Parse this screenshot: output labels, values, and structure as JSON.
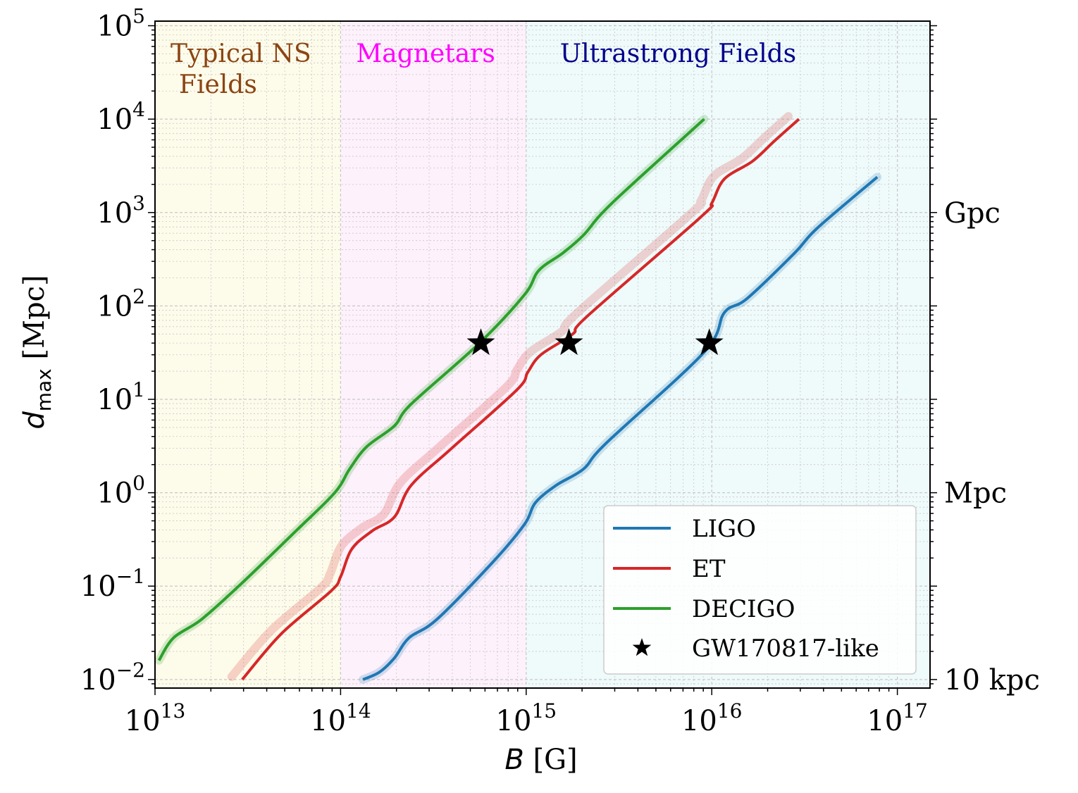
{
  "chart_data": {
    "type": "line",
    "xlabel": "B [G]",
    "ylabel": "d_max [Mpc]",
    "xscale": "log",
    "yscale": "log",
    "xlim": [
      10000000000000.0,
      1.5e+17
    ],
    "ylim": [
      0.0081,
      112000
    ],
    "grid": true,
    "x_ticks": [
      {
        "base": "10",
        "exp": "13",
        "value": 10000000000000.0
      },
      {
        "base": "10",
        "exp": "14",
        "value": 100000000000000.0
      },
      {
        "base": "10",
        "exp": "15",
        "value": 1000000000000000.0
      },
      {
        "base": "10",
        "exp": "16",
        "value": 1e+16
      },
      {
        "base": "10",
        "exp": "17",
        "value": 1e+17
      }
    ],
    "y_ticks": [
      {
        "base": "10",
        "exp": "−2",
        "value": 0.01
      },
      {
        "base": "10",
        "exp": "−1",
        "value": 0.1
      },
      {
        "base": "10",
        "exp": "0",
        "value": 1
      },
      {
        "base": "10",
        "exp": "1",
        "value": 10
      },
      {
        "base": "10",
        "exp": "2",
        "value": 100
      },
      {
        "base": "10",
        "exp": "3",
        "value": 1000
      },
      {
        "base": "10",
        "exp": "4",
        "value": 10000
      },
      {
        "base": "10",
        "exp": "5",
        "value": 100000
      }
    ],
    "right_ticks": [
      {
        "label": "Gpc",
        "value": 1000
      },
      {
        "label": "Mpc",
        "value": 1
      },
      {
        "label": "10 kpc",
        "value": 0.01
      }
    ],
    "regions": [
      {
        "label_lines": [
          "Typical NS",
          "Fields"
        ],
        "from": 10000000000000.0,
        "to": 100000000000000.0,
        "color": "#fdfbea",
        "label_color": "#8b4513"
      },
      {
        "label_lines": [
          "Magnetars"
        ],
        "from": 100000000000000.0,
        "to": 1000000000000000.0,
        "color": "#fdf1fb",
        "label_color": "#ff00ff"
      },
      {
        "label_lines": [
          "Ultrastrong Fields"
        ],
        "from": 1000000000000000.0,
        "to": 1.5e+17,
        "color": "#effafa",
        "label_color": "#00008b"
      }
    ],
    "legend_position": "lower-right",
    "series": [
      {
        "name": "LIGO",
        "color": "#1f77b4",
        "points": [
          [
            132000000000000.0,
            0.01
          ],
          [
            162000000000000.0,
            0.012
          ],
          [
            195000000000000.0,
            0.017
          ],
          [
            234000000000000.0,
            0.028
          ],
          [
            330000000000000.0,
            0.044
          ],
          [
            660000000000000.0,
            0.18
          ],
          [
            980000000000000.0,
            0.46
          ],
          [
            1120000000000000.0,
            0.78
          ],
          [
            1450000000000000.0,
            1.2
          ],
          [
            2040000000000000.0,
            1.8
          ],
          [
            2700000000000000.0,
            3.4
          ],
          [
            9100000000000000.0,
            32
          ],
          [
            1.17e+16,
            85
          ],
          [
            1.55e+16,
            120
          ],
          [
            2.8e+16,
            370
          ],
          [
            3.7e+16,
            680
          ],
          [
            7.8e+16,
            2400
          ]
        ]
      },
      {
        "name": "ET",
        "color": "#d62728",
        "points": [
          [
            29500000000000.0,
            0.01
          ],
          [
            48000000000000.0,
            0.031
          ],
          [
            89000000000000.0,
            0.089
          ],
          [
            100000000000000.0,
            0.126
          ],
          [
            115000000000000.0,
            0.25
          ],
          [
            148000000000000.0,
            0.39
          ],
          [
            195000000000000.0,
            0.55
          ],
          [
            240000000000000.0,
            1.2
          ],
          [
            390000000000000.0,
            2.9
          ],
          [
            890000000000000.0,
            12.6
          ],
          [
            1020000000000000.0,
            19.5
          ],
          [
            1200000000000000.0,
            30
          ],
          [
            1780000000000000.0,
            50
          ],
          [
            2140000000000000.0,
            78
          ],
          [
            8700000000000000.0,
            890
          ],
          [
            1e+16,
            1260
          ],
          [
            1.17e+16,
            2290
          ],
          [
            1.66e+16,
            3550
          ],
          [
            2.19e+16,
            5900
          ],
          [
            2.95e+16,
            10000
          ]
        ]
      },
      {
        "name": "DECIGO",
        "color": "#2ca02c",
        "points": [
          [
            10500000000000.0,
            0.016
          ],
          [
            12600000000000.0,
            0.028
          ],
          [
            17800000000000.0,
            0.044
          ],
          [
            29000000000000.0,
            0.105
          ],
          [
            57500000000000.0,
            0.39
          ],
          [
            93000000000000.0,
            1.0
          ],
          [
            112000000000000.0,
            1.8
          ],
          [
            138000000000000.0,
            3.1
          ],
          [
            195000000000000.0,
            5.2
          ],
          [
            240000000000000.0,
            8.9
          ],
          [
            560000000000000.0,
            40
          ],
          [
            980000000000000.0,
            132
          ],
          [
            1170000000000000.0,
            240
          ],
          [
            1580000000000000.0,
            370
          ],
          [
            2040000000000000.0,
            575
          ],
          [
            2900000000000000.0,
            1260
          ],
          [
            9100000000000000.0,
            10000
          ]
        ]
      }
    ],
    "markers": {
      "name": "GW170817-like",
      "color": "#000000",
      "points": [
        [
          570000000000000.0,
          40
        ],
        [
          1700000000000000.0,
          40
        ],
        [
          9700000000000000.0,
          40
        ]
      ]
    }
  }
}
